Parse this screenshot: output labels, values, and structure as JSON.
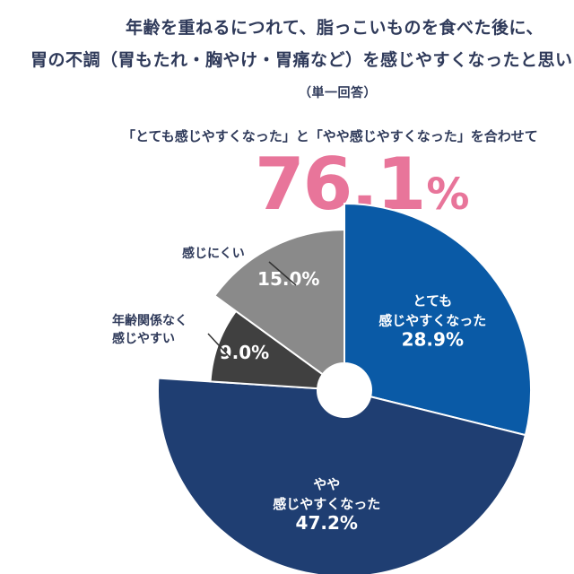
{
  "header": {
    "title_line1": "年齢を重ねるにつれて、脂っこいものを食べた後に、",
    "title_line2": "胃の不調（胃もたれ・胸やけ・胃痛など）を感じやすくなったと思い",
    "answer_type": "（単一回答）"
  },
  "summary": {
    "caption": "「とても感じやすくなった」と「やや感じやすくなった」を合わせて",
    "value": "76.1",
    "unit": "%"
  },
  "chart_data": {
    "type": "pie",
    "style": "donut",
    "unit": "%",
    "slices": [
      {
        "label": "とても感じやすくなった",
        "label_lines": [
          "とても",
          "感じやすくなった"
        ],
        "value": 28.9,
        "display": "28.9%",
        "color": "#0a5aa6",
        "label_position": "inside"
      },
      {
        "label": "やや感じやすくなった",
        "label_lines": [
          "やや",
          "感じやすくなった"
        ],
        "value": 47.2,
        "display": "47.2%",
        "color": "#1f3e72",
        "label_position": "inside"
      },
      {
        "label": "年齢関係なく感じやすい",
        "label_lines": [
          "年齢関係なく",
          "感じやすい"
        ],
        "value": 9.0,
        "display": "9.0%",
        "color": "#404040",
        "label_position": "outside"
      },
      {
        "label": "感じにくい",
        "label_lines": [
          "感じにくい"
        ],
        "value": 15.0,
        "display": "15.0%",
        "color": "#8a8a8a",
        "label_position": "outside"
      }
    ]
  }
}
